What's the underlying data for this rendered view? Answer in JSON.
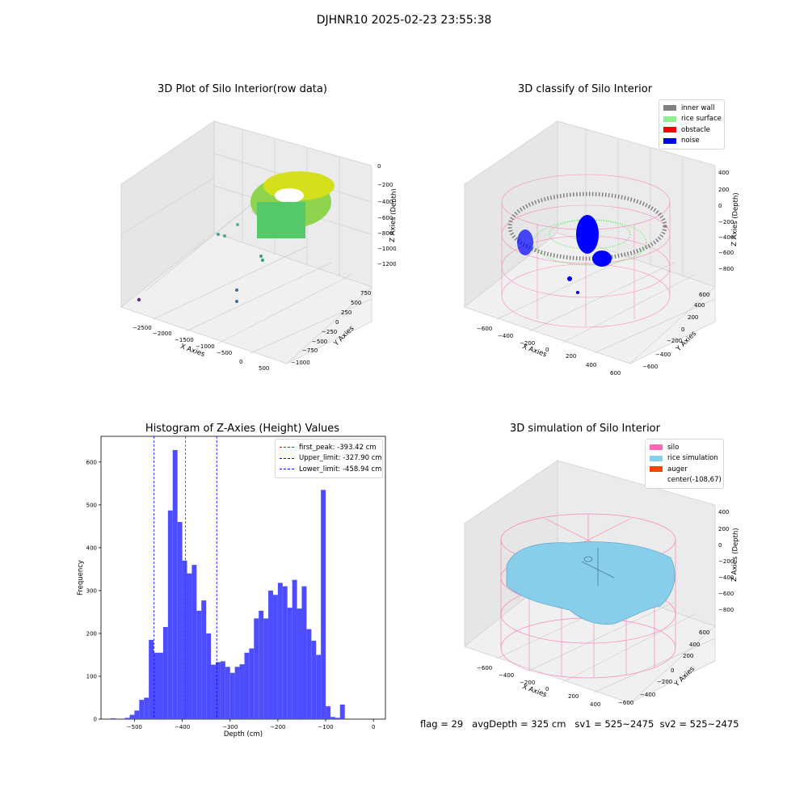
{
  "suptitle": "DJHNR10 2025-02-23 23:55:38",
  "colors": {
    "inner_wall": "#808080",
    "rice_surface": "#90ee90",
    "obstacle": "#ff0000",
    "noise": "#0000ff",
    "silo": "#ff69b4",
    "rice_simulation": "#87ceeb",
    "auger": "#ff4500",
    "histogram_bar": "#4d4dff"
  },
  "panel_raw": {
    "title": "3D Plot of Silo Interior(row data)",
    "xlabel": "X Axies",
    "ylabel": "Y Axies",
    "zlabel": "Z Axies (Depth)",
    "x_ticks": [
      "−2500",
      "−2000",
      "−1500",
      "−1000",
      "−500",
      "0",
      "500"
    ],
    "y_ticks": [
      "−1000",
      "−750",
      "−500",
      "−250",
      "0",
      "250",
      "500",
      "750"
    ],
    "z_ticks": [
      "0",
      "−200",
      "−400",
      "−600",
      "−800",
      "−1000",
      "−1200"
    ]
  },
  "panel_classify": {
    "title": "3D classify of Silo Interior",
    "xlabel": "X Axies",
    "ylabel": "Y Axies",
    "zlabel": "Z Axies (Depth)",
    "x_ticks": [
      "−600",
      "−400",
      "−200",
      "0",
      "200",
      "400",
      "600"
    ],
    "y_ticks": [
      "−600",
      "−400",
      "−200",
      "0",
      "200",
      "400",
      "600"
    ],
    "z_ticks": [
      "400",
      "200",
      "0",
      "−200",
      "−400",
      "−600",
      "−800"
    ],
    "legend": [
      "inner wall",
      "rice surface",
      "obstacle",
      "noise"
    ]
  },
  "panel_sim": {
    "title": "3D simulation of Silo Interior",
    "xlabel": "X Axies",
    "ylabel": "Y Axies",
    "zlabel": "Z Axies (Depth)",
    "x_ticks": [
      "−600",
      "−400",
      "−200",
      "0",
      "200",
      "400"
    ],
    "y_ticks": [
      "−600",
      "−400",
      "−200",
      "0",
      "200",
      "400",
      "600"
    ],
    "z_ticks": [
      "400",
      "200",
      "0",
      "−200",
      "−400",
      "−600",
      "−800"
    ],
    "legend": [
      "silo",
      "rice simulation",
      "auger",
      "center(-108,67)"
    ]
  },
  "footer": {
    "flag": "flag = 29",
    "avg_depth": "avgDepth = 325 cm",
    "sv1": "sv1 = 525~2475",
    "sv2": "sv2 = 525~2475"
  },
  "chart_data": [
    {
      "type": "bar",
      "title": "Histogram of Z-Axies (Height) Values",
      "xlabel": "Depth (cm)",
      "ylabel": "Frequency",
      "xlim": [
        -570,
        25
      ],
      "ylim": [
        0,
        660
      ],
      "x_ticks": [
        -500,
        -400,
        -300,
        -200,
        -100,
        0
      ],
      "y_ticks": [
        0,
        100,
        200,
        300,
        400,
        500,
        600
      ],
      "bin_edges_start": -550,
      "bin_width": 10,
      "values": [
        2,
        0,
        0,
        3,
        10,
        20,
        45,
        50,
        185,
        155,
        155,
        215,
        487,
        628,
        460,
        370,
        340,
        360,
        253,
        277,
        200,
        127,
        133,
        135,
        122,
        108,
        122,
        128,
        155,
        165,
        235,
        253,
        235,
        300,
        290,
        318,
        310,
        260,
        325,
        258,
        310,
        210,
        183,
        150,
        535,
        30,
        5,
        3,
        34,
        0
      ],
      "vlines": [
        {
          "label": "first_peak: -393.42 cm",
          "x": -393.42,
          "color": "#ff0000"
        },
        {
          "label": "Upper_limit: -327.90 cm",
          "x": -327.9,
          "color": "#0000ff"
        },
        {
          "label": "Lower_limit: -458.94 cm",
          "x": -458.94,
          "color": "#0000ff"
        }
      ]
    }
  ]
}
